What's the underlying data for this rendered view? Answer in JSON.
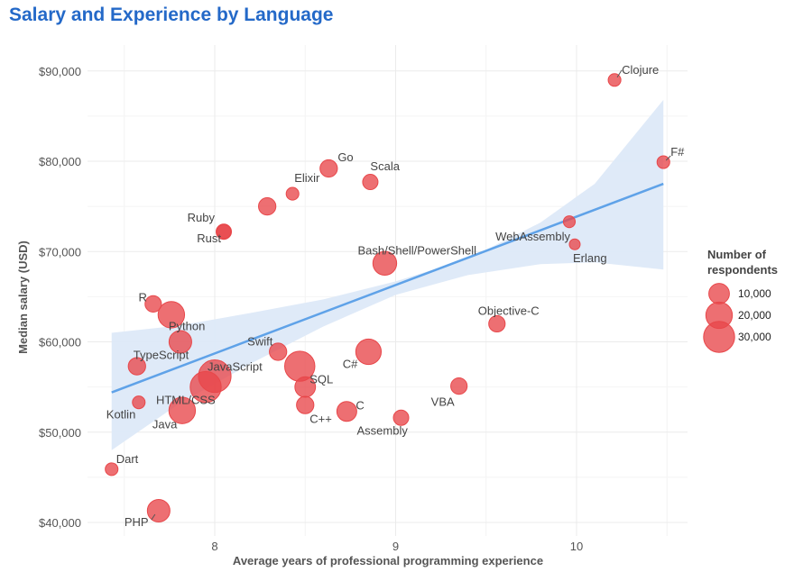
{
  "chart_data": {
    "type": "scatter",
    "title": "Salary and Experience by Language",
    "xlabel": "Average years of professional programming experience",
    "ylabel": "Median salary (USD)",
    "xlim": [
      7.3,
      10.6
    ],
    "ylim": [
      39000,
      92500
    ],
    "x_ticks": [
      8,
      9,
      10
    ],
    "x_tick_labels": [
      "8",
      "9",
      "10"
    ],
    "y_ticks": [
      40000,
      50000,
      60000,
      70000,
      80000,
      90000
    ],
    "y_tick_labels": [
      "$40,000",
      "$50,000",
      "$60,000",
      "$70,000",
      "$80,000",
      "$90,000"
    ],
    "grid": true,
    "colors": {
      "points": "#e8474a",
      "trend": "#5fa2e8",
      "band": "#dde9f8",
      "title": "#2469c8",
      "grid": "#ebebeb"
    },
    "trend_line": {
      "x": [
        7.43,
        10.48
      ],
      "y": [
        54400,
        77500
      ]
    },
    "confidence_band": {
      "x": [
        7.43,
        7.8,
        8.2,
        8.6,
        9.0,
        9.4,
        9.8,
        10.1,
        10.48
      ],
      "upper": [
        61000,
        61800,
        63200,
        64700,
        66700,
        69200,
        73200,
        77500,
        86800
      ],
      "lower": [
        48000,
        53100,
        57600,
        61700,
        65200,
        67400,
        68600,
        68800,
        68000
      ]
    },
    "points": [
      {
        "label": "Clojure",
        "x": 10.21,
        "y": 89000,
        "size": 2000
      },
      {
        "label": "F#",
        "x": 10.48,
        "y": 79900,
        "size": 2000
      },
      {
        "label": "Go",
        "x": 8.63,
        "y": 79200,
        "size": 6000
      },
      {
        "label": "Scala",
        "x": 8.86,
        "y": 77700,
        "size": 4000
      },
      {
        "label": "Elixir",
        "x": 8.43,
        "y": 76400,
        "size": 2000
      },
      {
        "label": "",
        "x": 8.29,
        "y": 75000,
        "size": 6000
      },
      {
        "label": "Ruby",
        "x": 8.05,
        "y": 72200,
        "size": 4000
      },
      {
        "label": "Rust",
        "x": 8.05,
        "y": 72200,
        "size": 3000
      },
      {
        "label": "WebAssembly",
        "x": 9.96,
        "y": 73300,
        "size": 1500
      },
      {
        "label": "Erlang",
        "x": 9.99,
        "y": 70800,
        "size": 1000
      },
      {
        "label": "Bash/Shell/PowerShell",
        "x": 8.94,
        "y": 68700,
        "size": 15000
      },
      {
        "label": "R",
        "x": 7.66,
        "y": 64200,
        "size": 5000
      },
      {
        "label": "",
        "x": 7.76,
        "y": 63000,
        "size": 20000
      },
      {
        "label": "Python",
        "x": 7.81,
        "y": 60000,
        "size": 13000
      },
      {
        "label": "Objective-C",
        "x": 9.56,
        "y": 62000,
        "size": 5000
      },
      {
        "label": "Swift",
        "x": 8.35,
        "y": 58900,
        "size": 6000
      },
      {
        "label": "TypeScript",
        "x": 7.57,
        "y": 57300,
        "size": 6000
      },
      {
        "label": "C#",
        "x": 8.85,
        "y": 58900,
        "size": 18000
      },
      {
        "label": "",
        "x": 8.47,
        "y": 57300,
        "size": 28000
      },
      {
        "label": "JavaScript",
        "x": 8.0,
        "y": 56200,
        "size": 34000
      },
      {
        "label": "HTML/CSS",
        "x": 7.95,
        "y": 55000,
        "size": 30000
      },
      {
        "label": "SQL",
        "x": 8.5,
        "y": 55000,
        "size": 10000
      },
      {
        "label": "Kotlin",
        "x": 7.58,
        "y": 53300,
        "size": 2000
      },
      {
        "label": "VBA",
        "x": 9.35,
        "y": 55100,
        "size": 5000
      },
      {
        "label": "C++",
        "x": 8.5,
        "y": 53000,
        "size": 6000
      },
      {
        "label": "C",
        "x": 8.73,
        "y": 52300,
        "size": 9000
      },
      {
        "label": "Java",
        "x": 7.82,
        "y": 52400,
        "size": 20000
      },
      {
        "label": "Assembly",
        "x": 9.03,
        "y": 51600,
        "size": 4000
      },
      {
        "label": "Dart",
        "x": 7.43,
        "y": 45900,
        "size": 2000
      },
      {
        "label": "PHP",
        "x": 7.69,
        "y": 41300,
        "size": 13000
      }
    ],
    "legend": {
      "title": [
        "Number of",
        "respondents"
      ],
      "entries": [
        {
          "label": "10,000",
          "size": 10000
        },
        {
          "label": "20,000",
          "size": 20000
        },
        {
          "label": "30,000",
          "size": 30000
        }
      ],
      "placement": "right"
    }
  }
}
